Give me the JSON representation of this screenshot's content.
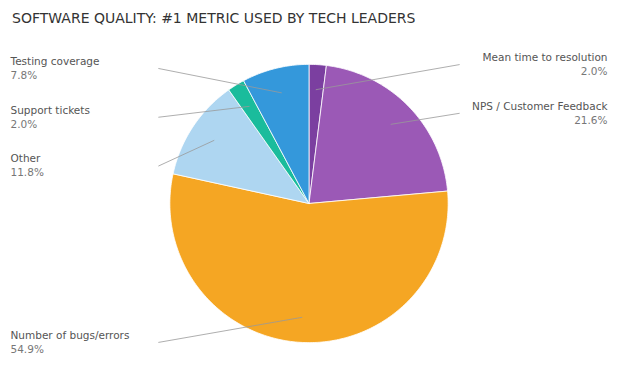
{
  "chart_data": {
    "type": "pie",
    "title": "SOFTWARE QUALITY: #1 METRIC USED BY TECH LEADERS",
    "categories": [
      "Mean time to resolution",
      "NPS / Customer Feedback",
      "Number of bugs/errors",
      "Other",
      "Support tickets",
      "Testing coverage"
    ],
    "values": [
      2.0,
      21.6,
      54.9,
      11.8,
      2.0,
      7.8
    ],
    "value_labels": [
      "2.0%",
      "21.6%",
      "54.9%",
      "11.8%",
      "2.0%",
      "7.8%"
    ],
    "colors": [
      "#7B3FA0",
      "#9B59B6",
      "#F5A623",
      "#AED6F1",
      "#1ABC9C",
      "#3498DB"
    ],
    "data_labels": true
  }
}
